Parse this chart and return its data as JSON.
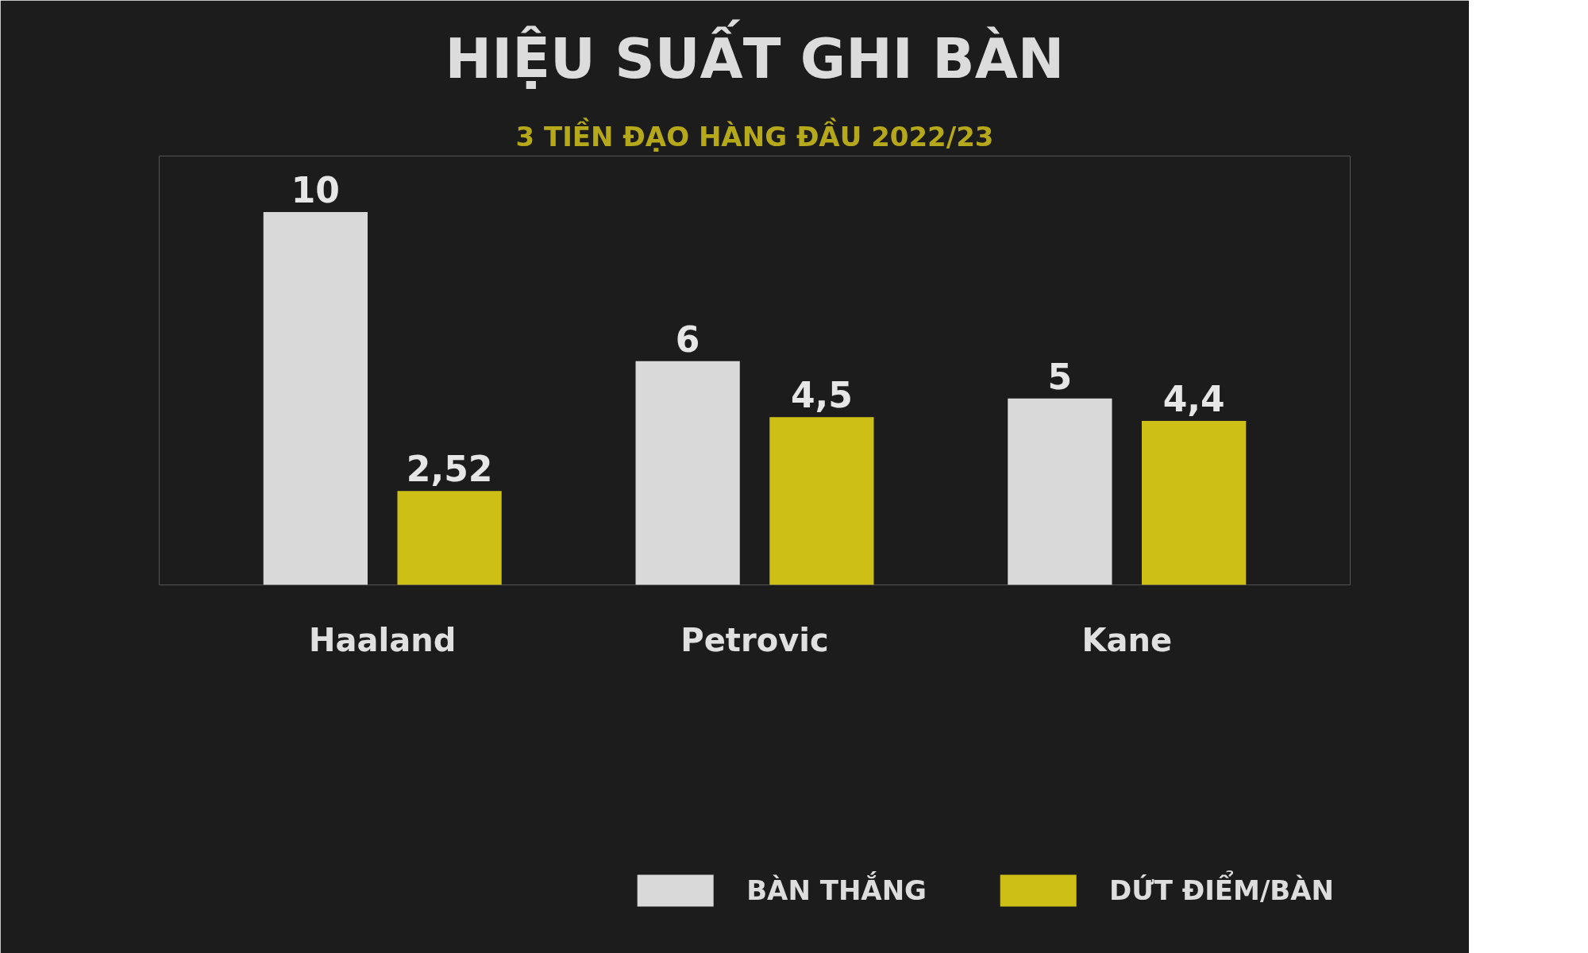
{
  "chart_data": {
    "type": "bar",
    "title": "HIỆU SUẤT GHI BÀN",
    "subtitle": "3 TIỀN ĐẠO HÀNG ĐẦU 2022/23",
    "categories": [
      "Haaland",
      "Petrovic",
      "Kane"
    ],
    "series": [
      {
        "name": "BÀN THẮNG",
        "color": "#d9d9d9",
        "values": [
          10,
          6,
          5
        ],
        "value_labels": [
          "10",
          "6",
          "5"
        ]
      },
      {
        "name": "DỨT ĐIỂM/BÀN",
        "color": "#cdbf16",
        "values": [
          2.52,
          4.5,
          4.4
        ],
        "value_labels": [
          "2,52",
          "4,5",
          "4,4"
        ]
      }
    ],
    "legend": "bottom right",
    "grid": false
  }
}
